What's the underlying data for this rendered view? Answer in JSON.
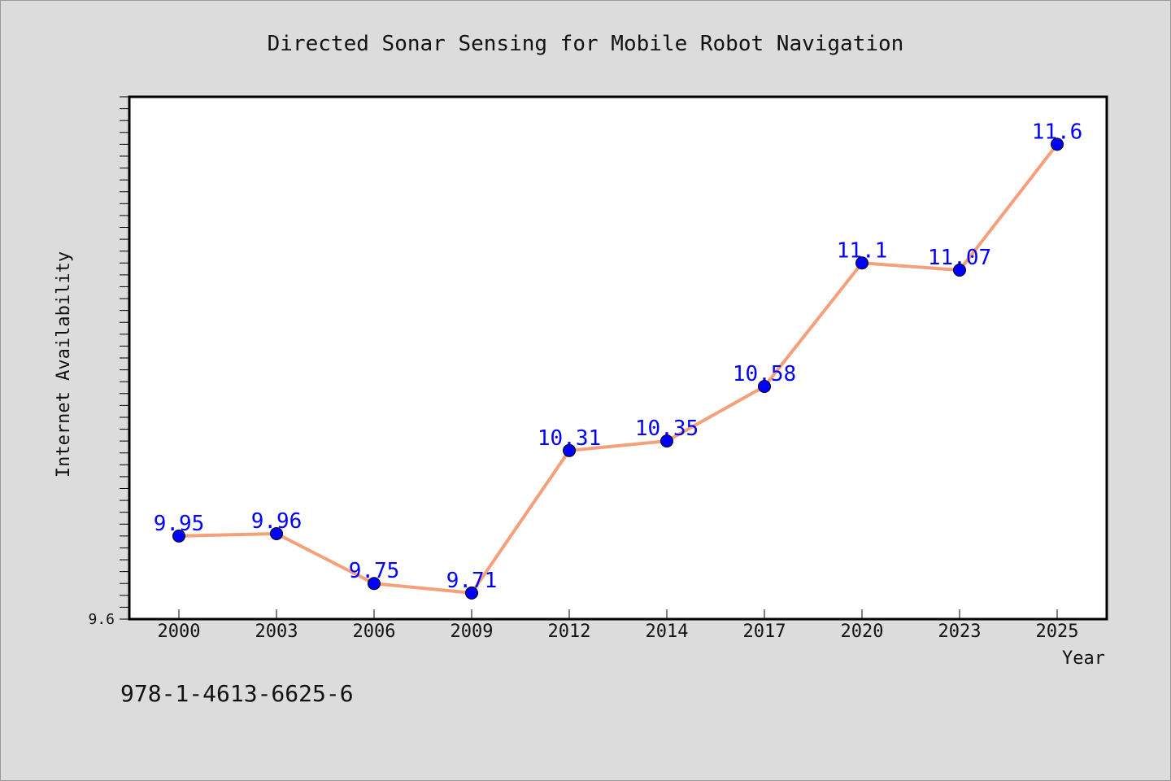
{
  "footer_text": "978-1-4613-6625-6",
  "chart_data": {
    "type": "line",
    "title": "Directed Sonar Sensing for Mobile Robot Navigation",
    "xlabel": "Year",
    "ylabel": "Internet Availability",
    "categories": [
      "2000",
      "2003",
      "2006",
      "2009",
      "2012",
      "2014",
      "2017",
      "2020",
      "2023",
      "2025"
    ],
    "series": [
      {
        "values": [
          9.95,
          9.96,
          9.75,
          9.71,
          10.31,
          10.35,
          10.58,
          11.1,
          11.07,
          11.6
        ],
        "data_labels": [
          "9.95",
          "9.96",
          "9.75",
          "9.71",
          "10.31",
          "10.35",
          "10.58",
          "11.1",
          "11.07",
          "11.6"
        ]
      }
    ],
    "ylim": [
      9.6,
      11.8
    ],
    "yticks_labeled": [
      "9.6"
    ],
    "grid": false,
    "legend": "none",
    "colors": {
      "line": "#f4a07a",
      "marker": "#0000ff",
      "data_label": "#0000ff",
      "plot_bg": "#ffffff",
      "page_bg": "#dcdcdc"
    }
  }
}
